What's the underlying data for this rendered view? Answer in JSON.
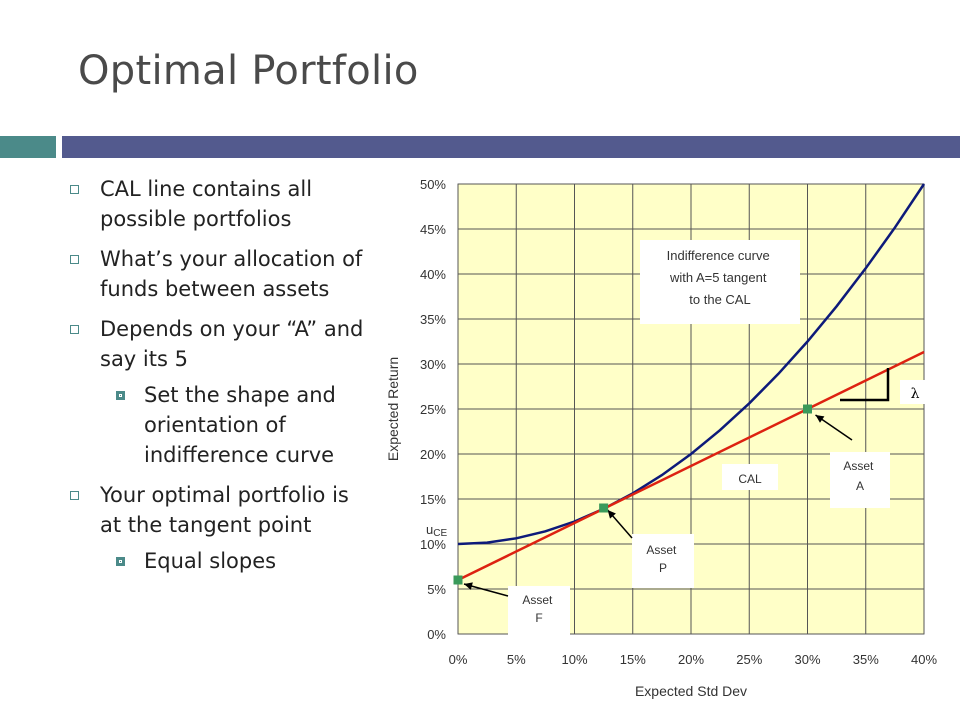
{
  "slide": {
    "title": "Optimal Portfolio",
    "colors": {
      "teal": "#4b8a89",
      "navy": "#535a8e",
      "plot_bg": "#ffffc8"
    }
  },
  "bullets": [
    {
      "level": 1,
      "text": "CAL line contains all possible portfolios"
    },
    {
      "level": 1,
      "text": "What’s your allocation of funds between assets"
    },
    {
      "level": 1,
      "text": "Depends on your “A” and say its 5"
    },
    {
      "level": 2,
      "text": "Set the shape and orientation of indifference curve"
    },
    {
      "level": 1,
      "text": "Your optimal portfolio is at the tangent point"
    },
    {
      "level": 2,
      "text": "Equal slopes"
    }
  ],
  "chart_data": {
    "type": "line",
    "xlabel": "Expected Std Dev",
    "ylabel": "Expected Return",
    "xlim": [
      0,
      0.4
    ],
    "ylim": [
      0,
      0.5
    ],
    "xticks": [
      "0%",
      "5%",
      "10%",
      "15%",
      "20%",
      "25%",
      "30%",
      "35%",
      "40%"
    ],
    "yticks": [
      "0%",
      "5%",
      "10%",
      "15%",
      "20%",
      "25%",
      "30%",
      "35%",
      "40%",
      "45%",
      "50%"
    ],
    "grid": true,
    "background": "#ffffc8",
    "series": [
      {
        "color": "#0d1a7a",
        "x": [
          0,
          0.025,
          0.05,
          0.075,
          0.1,
          0.125,
          0.15,
          0.175,
          0.2,
          0.225,
          0.25,
          0.275,
          0.3,
          0.325,
          0.35,
          0.375,
          0.4
        ],
        "y": [
          0.1,
          0.1016,
          0.1063,
          0.1141,
          0.125,
          0.1391,
          0.1563,
          0.1766,
          0.2,
          0.2266,
          0.2563,
          0.2891,
          0.325,
          0.3641,
          0.4063,
          0.4516,
          0.5
        ]
      },
      {
        "color": "#dd2211",
        "x": [
          0,
          0.4
        ],
        "y": [
          0.06,
          0.3133
        ]
      }
    ],
    "points": [
      {
        "label": "Asset F",
        "x": 0.0,
        "y": 0.06
      },
      {
        "label": "Asset P",
        "x": 0.125,
        "y": 0.14
      },
      {
        "label": "Asset A",
        "x": 0.3,
        "y": 0.25
      }
    ],
    "annotations": {
      "indifference": "Indifference curve with A=5 tangent to the CAL",
      "cal": "CAL",
      "lambda": "λ",
      "uce_main": "u",
      "uce_sub": "CE",
      "asset_f_1": "Asset",
      "asset_f_2": "F",
      "asset_p_1": "Asset",
      "asset_p_2": "P",
      "asset_a_1": "Asset",
      "asset_a_2": "A"
    }
  }
}
